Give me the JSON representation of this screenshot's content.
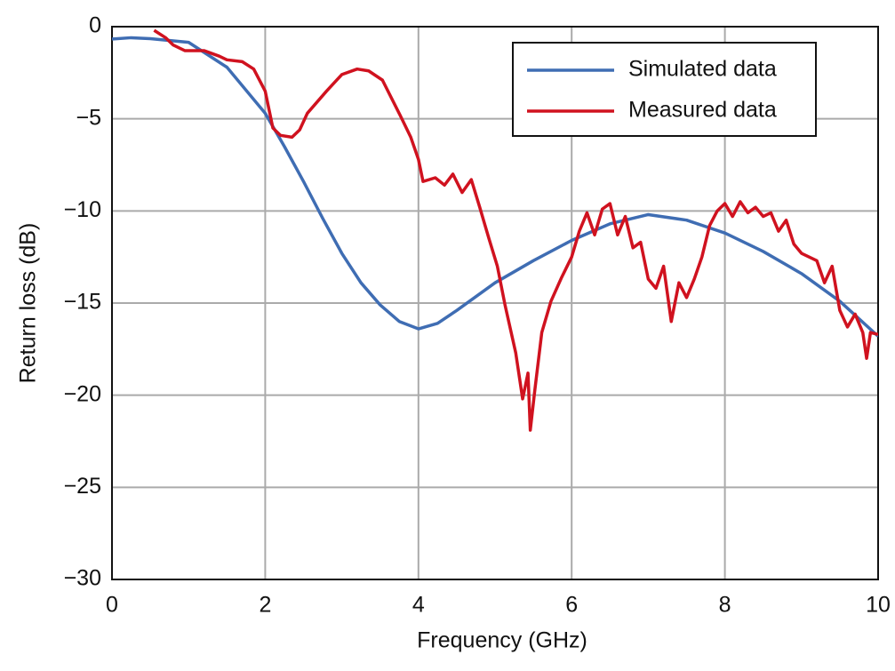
{
  "chart_data": {
    "type": "line",
    "xlabel": "Frequency (GHz)",
    "ylabel": "Return loss (dB)",
    "xlim": [
      0,
      10
    ],
    "ylim": [
      -30,
      0
    ],
    "xticks": [
      0,
      2,
      4,
      6,
      8,
      10
    ],
    "yticks": [
      0,
      {
        "value": -5,
        "label": "−5"
      },
      {
        "value": -10,
        "label": "−10"
      },
      {
        "value": -15,
        "label": "−15"
      },
      {
        "value": -20,
        "label": "−20"
      },
      {
        "value": -25,
        "label": "−25"
      },
      {
        "value": -30,
        "label": "−30"
      }
    ],
    "grid": true,
    "legend": "upper right",
    "series": [
      {
        "name": "Simulated data",
        "color": "#3f6db3",
        "x": [
          0,
          0.25,
          0.5,
          1.0,
          1.5,
          2.0,
          2.25,
          2.5,
          2.75,
          3.0,
          3.25,
          3.5,
          3.75,
          4.0,
          4.25,
          4.5,
          5.0,
          5.5,
          6.0,
          6.5,
          7.0,
          7.5,
          8.0,
          8.5,
          9.0,
          9.5,
          10.0
        ],
        "values": [
          -0.67,
          -0.6,
          -0.65,
          -0.85,
          -2.2,
          -4.7,
          -6.5,
          -8.4,
          -10.4,
          -12.3,
          -13.9,
          -15.1,
          -16.0,
          -16.4,
          -16.1,
          -15.4,
          -13.9,
          -12.7,
          -11.6,
          -10.7,
          -10.2,
          -10.5,
          -11.2,
          -12.2,
          -13.4,
          -14.9,
          -16.8
        ]
      },
      {
        "name": "Measured data",
        "color": "#d0121f",
        "x": [
          0.55,
          0.7,
          0.8,
          0.95,
          1.2,
          1.4,
          1.5,
          1.7,
          1.85,
          2.0,
          2.1,
          2.2,
          2.35,
          2.45,
          2.55,
          2.8,
          3.0,
          3.2,
          3.35,
          3.53,
          3.76,
          3.9,
          4.0,
          4.06,
          4.22,
          4.34,
          4.45,
          4.57,
          4.69,
          4.8,
          4.92,
          5.03,
          5.13,
          5.27,
          5.36,
          5.43,
          5.46,
          5.52,
          5.61,
          5.73,
          5.87,
          6.0,
          6.1,
          6.2,
          6.3,
          6.4,
          6.5,
          6.6,
          6.7,
          6.8,
          6.9,
          7.0,
          7.1,
          7.2,
          7.3,
          7.4,
          7.5,
          7.6,
          7.7,
          7.8,
          7.9,
          8.0,
          8.1,
          8.2,
          8.3,
          8.4,
          8.5,
          8.6,
          8.7,
          8.8,
          8.9,
          9.0,
          9.2,
          9.3,
          9.4,
          9.5,
          9.6,
          9.7,
          9.8,
          9.85,
          9.9,
          10.0
        ],
        "values": [
          -0.2,
          -0.6,
          -1.0,
          -1.3,
          -1.3,
          -1.6,
          -1.8,
          -1.9,
          -2.3,
          -3.5,
          -5.5,
          -5.9,
          -6.0,
          -5.6,
          -4.7,
          -3.5,
          -2.6,
          -2.3,
          -2.4,
          -2.9,
          -4.8,
          -6.0,
          -7.2,
          -8.4,
          -8.2,
          -8.6,
          -8.0,
          -9.0,
          -8.3,
          -9.8,
          -11.5,
          -13.0,
          -15.1,
          -17.7,
          -20.2,
          -18.8,
          -21.9,
          -19.7,
          -16.6,
          -14.9,
          -13.6,
          -12.5,
          -11.1,
          -10.1,
          -11.3,
          -9.9,
          -9.6,
          -11.3,
          -10.3,
          -12.0,
          -11.7,
          -13.7,
          -14.2,
          -13.0,
          -16.0,
          -13.9,
          -14.7,
          -13.7,
          -12.5,
          -10.8,
          -10.0,
          -9.6,
          -10.3,
          -9.5,
          -10.1,
          -9.8,
          -10.3,
          -10.1,
          -11.1,
          -10.5,
          -11.8,
          -12.3,
          -12.7,
          -13.9,
          -13.0,
          -15.4,
          -16.3,
          -15.6,
          -16.6,
          -18.0,
          -16.6,
          -16.7
        ]
      }
    ]
  }
}
